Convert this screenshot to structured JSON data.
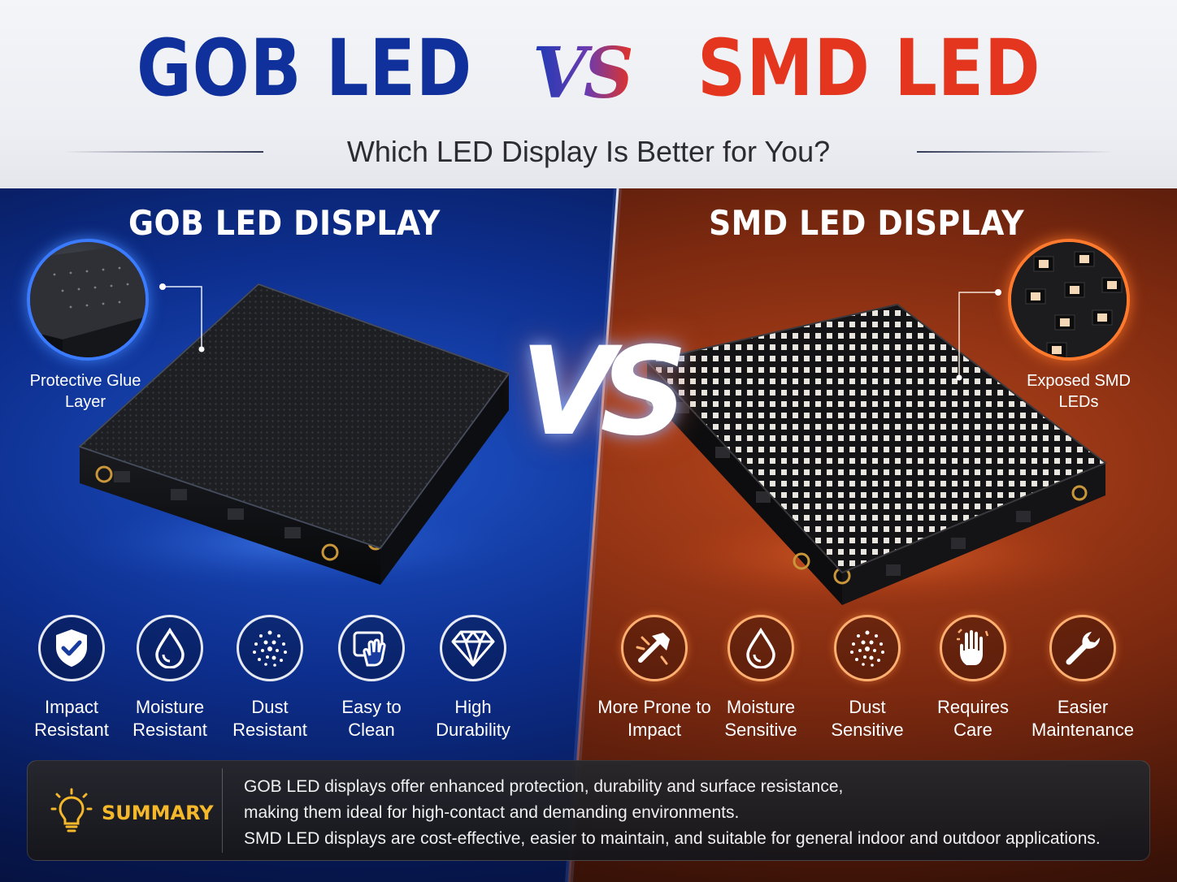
{
  "header": {
    "title_left": "GOB LED",
    "title_vs": "VS",
    "title_right": "SMD LED",
    "subtitle": "Which LED Display Is Better for You?"
  },
  "left_panel": {
    "title": "GOB LED DISPLAY",
    "zoom_label_line1": "Protective Glue",
    "zoom_label_line2": "Layer",
    "features": [
      {
        "icon": "shield-check-icon",
        "line1": "Impact",
        "line2": "Resistant"
      },
      {
        "icon": "water-drop-icon",
        "line1": "Moisture",
        "line2": "Resistant"
      },
      {
        "icon": "dust-particles-icon",
        "line1": "Dust",
        "line2": "Resistant"
      },
      {
        "icon": "hand-cleaning-icon",
        "line1": "Easy to",
        "line2": "Clean"
      },
      {
        "icon": "diamond-icon",
        "line1": "High",
        "line2": "Durability"
      }
    ]
  },
  "center": {
    "vs": "VS"
  },
  "right_panel": {
    "title": "SMD LED DISPLAY",
    "zoom_label_line1": "Exposed SMD",
    "zoom_label_line2": "LEDs",
    "features": [
      {
        "icon": "hammer-impact-icon",
        "line1": "More Prone to",
        "line2": "Impact"
      },
      {
        "icon": "water-drop-icon",
        "line1": "Moisture",
        "line2": "Sensitive"
      },
      {
        "icon": "dust-particles-icon",
        "line1": "Dust",
        "line2": "Sensitive"
      },
      {
        "icon": "hand-care-icon",
        "line1": "Requires",
        "line2": "Care"
      },
      {
        "icon": "wrench-icon",
        "line1": "Easier",
        "line2": "Maintenance"
      }
    ]
  },
  "summary": {
    "icon": "lightbulb-icon",
    "label": "SUMMARY",
    "line1": "GOB LED displays offer enhanced protection, durability and surface resistance,",
    "line2": "making them ideal for high-contact and demanding environments.",
    "line3": "SMD LED displays are cost-effective, easier to maintain, and suitable for general indoor and outdoor applications."
  },
  "colors": {
    "gob_blue": "#10319c",
    "smd_red": "#e4351f",
    "summary_gold": "#f5b82a"
  }
}
